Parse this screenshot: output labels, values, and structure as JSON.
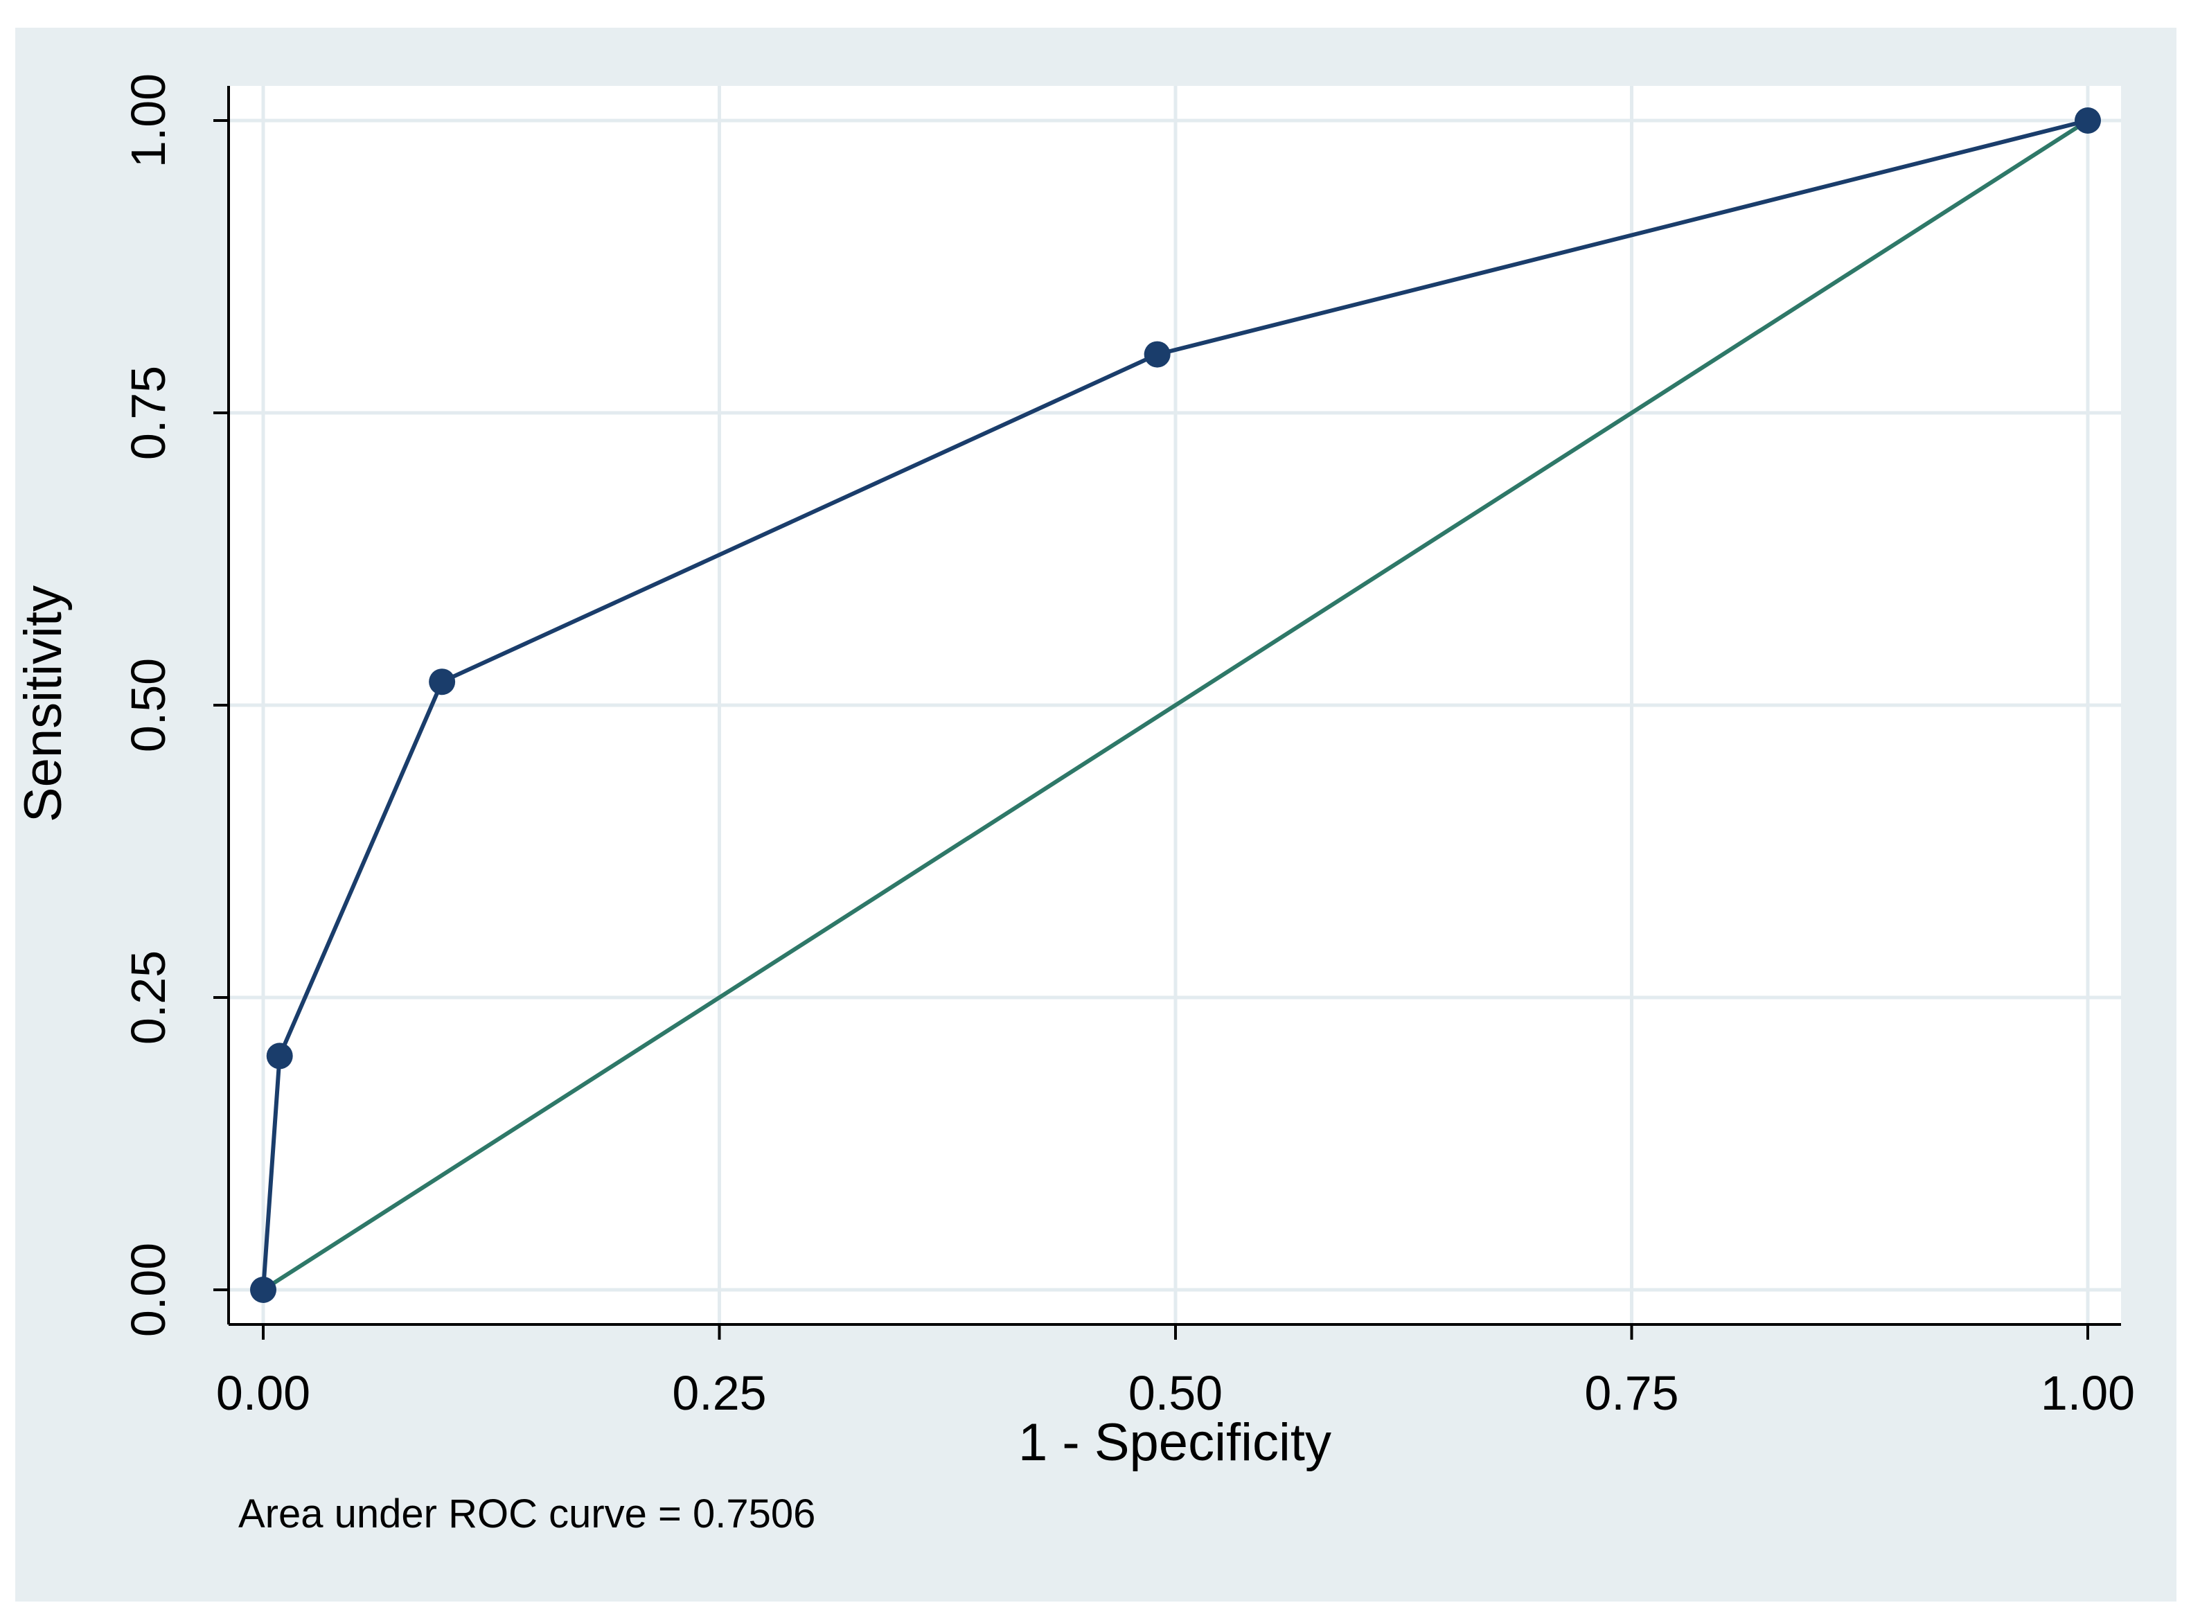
{
  "chart_data": {
    "type": "line",
    "title": "",
    "xlabel": "1 - Specificity",
    "ylabel": "Sensitivity",
    "xlim": [
      0,
      1
    ],
    "ylim": [
      0,
      1
    ],
    "x_ticks": [
      "0.00",
      "0.25",
      "0.50",
      "0.75",
      "1.00"
    ],
    "y_ticks": [
      "0.00",
      "0.25",
      "0.50",
      "0.75",
      "1.00"
    ],
    "x_tick_values": [
      0,
      0.25,
      0.5,
      0.75,
      1
    ],
    "y_tick_values": [
      0,
      0.25,
      0.5,
      0.75,
      1
    ],
    "grid": true,
    "legend": "none",
    "note": "Area under ROC curve = 0.7506",
    "series": [
      {
        "markers": true,
        "color": "#1a3d6b",
        "x": [
          0,
          0.009,
          0.098,
          0.49,
          1
        ],
        "y": [
          0,
          0.2,
          0.52,
          0.8,
          1
        ]
      },
      {
        "markers": false,
        "color": "#2e7868",
        "x": [
          0,
          1
        ],
        "y": [
          0,
          1
        ]
      }
    ],
    "colors": {
      "outer_background": "#e7eef1",
      "plot_background": "#ffffff",
      "gridline": "#e3ebef",
      "axis": "#000000"
    }
  }
}
